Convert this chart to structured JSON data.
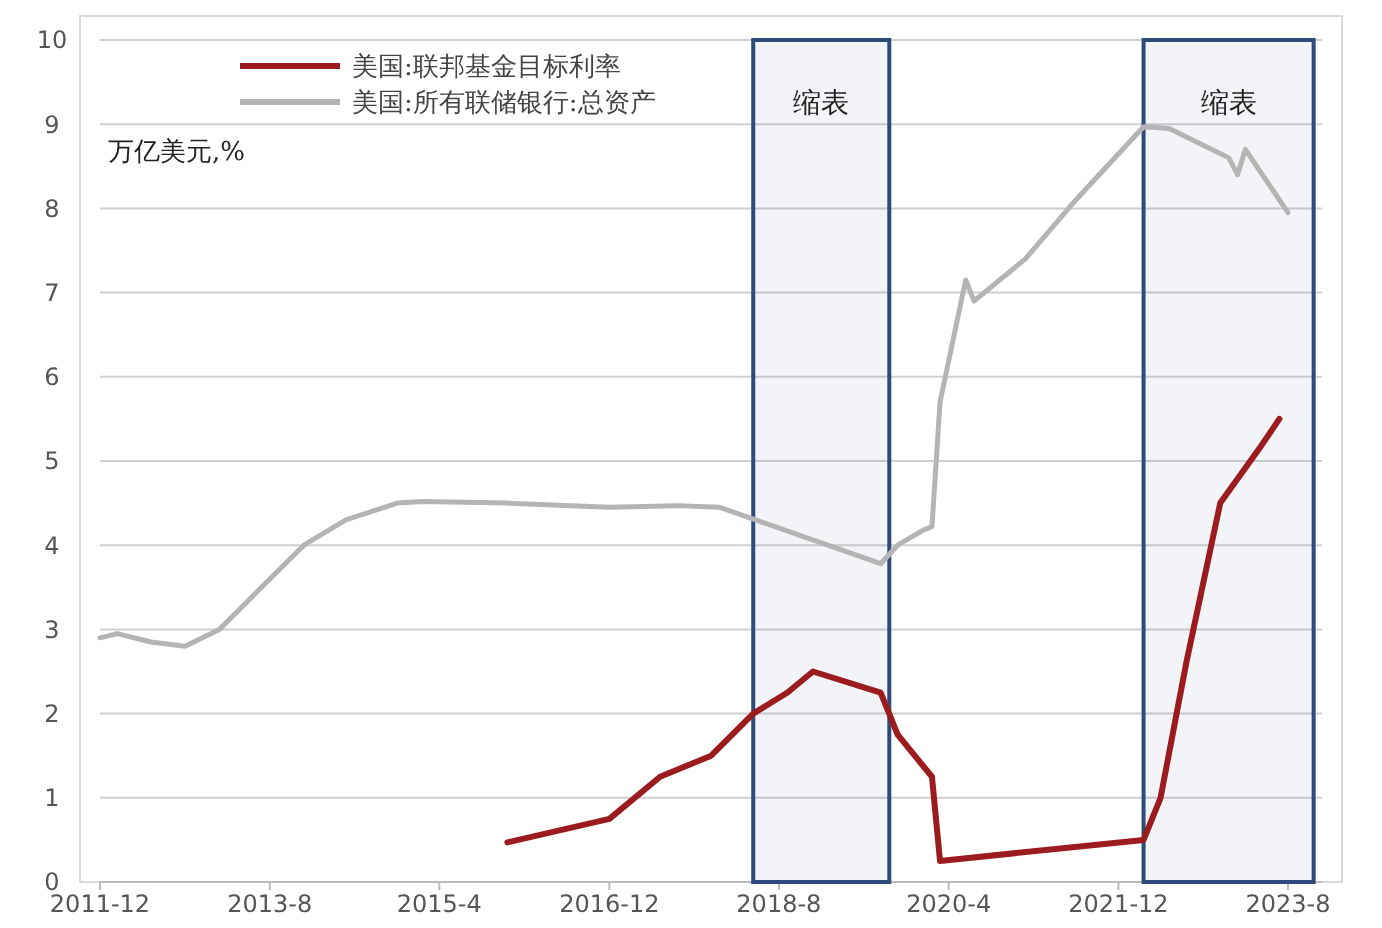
{
  "chart_data": {
    "type": "line",
    "ylabel": "万亿美元,%",
    "xlim": [
      "2011-12",
      "2023-12"
    ],
    "xticks": [
      "2011-12",
      {
        "value": "2013-08",
        "label": "2013-8"
      },
      {
        "value": "2015-04",
        "label": "2015-4"
      },
      "2016-12",
      {
        "value": "2018-08",
        "label": "2018-8"
      },
      {
        "value": "2020-04",
        "label": "2020-4"
      },
      "2021-12",
      {
        "value": "2023-08",
        "label": "2023-8"
      }
    ],
    "ylim": [
      0,
      10
    ],
    "yticks": [
      0,
      1,
      2,
      3,
      4,
      5,
      6,
      7,
      8,
      9,
      10
    ],
    "grid": "y",
    "legend": "top",
    "marker": "none",
    "line_style": "solid",
    "series": [
      {
        "name": "美国:联邦基金目标利率",
        "color": "#9b1b1e",
        "x": [
          "2015-12",
          "2016-12",
          "2017-06",
          "2017-12",
          "2018-05",
          "2018-09",
          "2018-12",
          "2019-08",
          "2019-10",
          "2020-02",
          "2020-03",
          "2022-03",
          "2022-05",
          "2022-08",
          "2022-12",
          "2023-05",
          "2023-07"
        ],
        "values": [
          0.47,
          0.75,
          1.25,
          1.5,
          2.0,
          2.25,
          2.5,
          2.25,
          1.75,
          1.25,
          0.25,
          0.5,
          1.0,
          2.6,
          4.5,
          5.2,
          5.5
        ]
      },
      {
        "name": "美国:所有联储银行:总资产",
        "color": "#b4b4b4",
        "x": [
          "2011-12",
          "2012-02",
          "2012-06",
          "2012-10",
          "2013-02",
          "2013-12",
          "2014-05",
          "2014-11",
          "2015-02",
          "2015-12",
          "2016-12",
          "2017-08",
          "2018-01",
          "2019-08",
          "2019-10",
          "2020-01",
          "2020-02",
          "2020-03",
          "2020-06",
          "2020-07",
          "2021-01",
          "2021-07",
          "2022-03",
          "2022-06",
          "2023-01",
          "2023-02",
          "2023-03",
          "2023-08"
        ],
        "values": [
          2.9,
          2.95,
          2.85,
          2.8,
          3.0,
          4.0,
          4.3,
          4.5,
          4.52,
          4.5,
          4.45,
          4.47,
          4.45,
          3.78,
          4.0,
          4.18,
          4.22,
          5.7,
          7.15,
          6.9,
          7.4,
          8.1,
          8.97,
          8.95,
          8.6,
          8.4,
          8.7,
          7.95
        ]
      }
    ],
    "bands": [
      {
        "axis": "x",
        "from": "2018-05",
        "to": "2019-09",
        "label": "缩表",
        "color": "#2f4b7c"
      },
      {
        "axis": "x",
        "from": "2022-03",
        "to": "2023-11",
        "label": "缩表",
        "color": "#2f4b7c"
      }
    ]
  }
}
